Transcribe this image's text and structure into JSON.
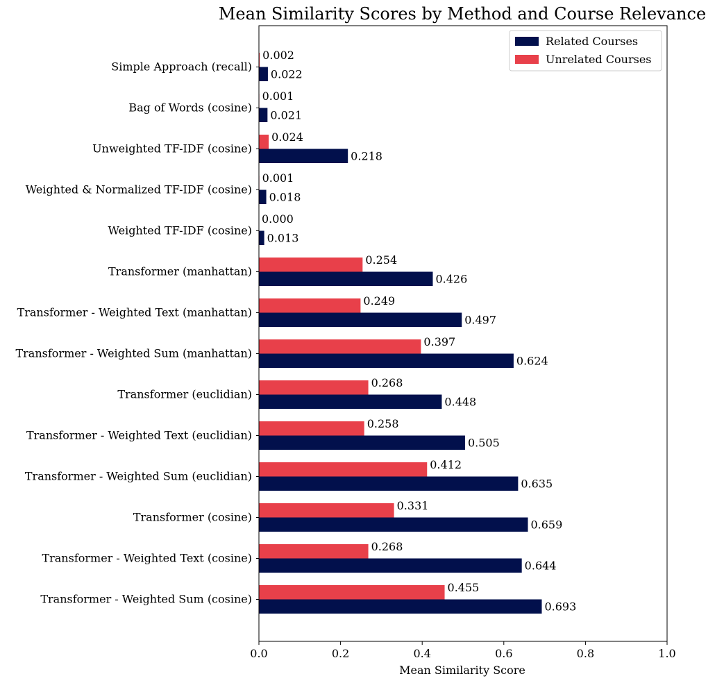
{
  "chart_data": {
    "type": "bar",
    "orientation": "horizontal",
    "title": "Mean Similarity Scores by Method and Course Relevance",
    "xlabel": "Mean Similarity Score",
    "ylabel": "",
    "xlim": [
      0,
      1.0
    ],
    "xticks": [
      "0.0",
      "0.2",
      "0.4",
      "0.6",
      "0.8",
      "1.0"
    ],
    "grid": false,
    "legend_position": "top-right",
    "categories": [
      "Simple Approach (recall)",
      "Bag of Words (cosine)",
      "Unweighted TF-IDF (cosine)",
      "Weighted & Normalized TF-IDF (cosine)",
      "Weighted TF-IDF (cosine)",
      "Transformer (manhattan)",
      "Transformer - Weighted Text (manhattan)",
      "Transformer - Weighted Sum (manhattan)",
      "Transformer (euclidian)",
      "Transformer - Weighted Text (euclidian)",
      "Transformer - Weighted Sum (euclidian)",
      "Transformer (cosine)",
      "Transformer - Weighted Text (cosine)",
      "Transformer - Weighted Sum (cosine)"
    ],
    "series": [
      {
        "name": "Related Courses",
        "color": "#02104c",
        "values": [
          0.022,
          0.021,
          0.218,
          0.018,
          0.013,
          0.426,
          0.497,
          0.624,
          0.448,
          0.505,
          0.635,
          0.659,
          0.644,
          0.693
        ],
        "labels": [
          "0.022",
          "0.021",
          "0.218",
          "0.018",
          "0.013",
          "0.426",
          "0.497",
          "0.624",
          "0.448",
          "0.505",
          "0.635",
          "0.659",
          "0.644",
          "0.693"
        ]
      },
      {
        "name": "Unrelated Courses",
        "color": "#e8404a",
        "values": [
          0.002,
          0.001,
          0.024,
          0.001,
          0.0,
          0.254,
          0.249,
          0.397,
          0.268,
          0.258,
          0.412,
          0.331,
          0.268,
          0.455
        ],
        "labels": [
          "0.002",
          "0.001",
          "0.024",
          "0.001",
          "0.000",
          "0.254",
          "0.249",
          "0.397",
          "0.268",
          "0.258",
          "0.412",
          "0.331",
          "0.268",
          "0.455"
        ]
      }
    ]
  }
}
